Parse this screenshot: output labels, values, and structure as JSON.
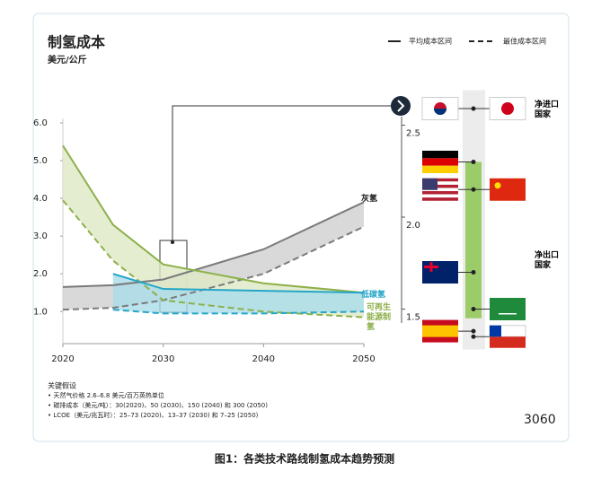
{
  "chart_data": [
    {
      "type": "band-line",
      "title": "制氢成本",
      "subtitle": "美元/公斤",
      "legend": {
        "solid": "平均成本区间",
        "dashed": "最佳成本区间"
      },
      "x": [
        2020,
        2025,
        2030,
        2040,
        2050
      ],
      "xlim": [
        2020,
        2050
      ],
      "xticks": [
        2020,
        2030,
        2040,
        2050
      ],
      "ylim": [
        0.15,
        6.0
      ],
      "yticks": [
        {
          "value": 1,
          "label": "1.0"
        },
        {
          "value": 2,
          "label": "2.0"
        },
        {
          "value": 3,
          "label": "3.0"
        },
        {
          "value": 4,
          "label": "4.0"
        },
        {
          "value": 5,
          "label": "5.0"
        },
        {
          "value": 6,
          "label": "6.0"
        }
      ],
      "bands": [
        {
          "name": "灰氢",
          "color": "#7a7a7a",
          "fill": "#cfcfcf",
          "label_color": "#222",
          "upper": [
            1.65,
            1.7,
            1.85,
            2.65,
            3.9
          ],
          "lower": [
            1.05,
            1.1,
            1.3,
            2.0,
            3.25
          ]
        },
        {
          "name": "可再生能源制氢",
          "color": "#8db04a",
          "fill": "#dfe9c6",
          "label_color": "#8db04a",
          "upper": [
            5.4,
            3.3,
            2.25,
            1.75,
            1.5
          ],
          "lower": [
            3.95,
            2.35,
            1.3,
            1.0,
            0.85
          ]
        },
        {
          "name": "低碳氢",
          "color": "#25a6c8",
          "fill": "#a9dcea",
          "label_color": "#25a6c8",
          "upper": [
            null,
            2.0,
            1.6,
            1.55,
            1.5
          ],
          "lower": [
            null,
            1.05,
            0.95,
            0.95,
            1.0
          ]
        }
      ]
    },
    {
      "type": "dot",
      "ylim": [
        1.28,
        2.69
      ],
      "yticks": [
        {
          "value": 1.5,
          "label": "1.5"
        },
        {
          "value": 2,
          "label": "2.0"
        },
        {
          "value": 2.5,
          "label": "2.5"
        }
      ],
      "range": [
        1.45,
        2.3
      ],
      "range_color": "#9ccc6a",
      "values": [
        2.59,
        2.3,
        2.15,
        1.7,
        1.5,
        1.38,
        1.35
      ],
      "groups": [
        "净进口国家",
        "净出口国家"
      ]
    }
  ],
  "notes": {
    "title": "关键假设",
    "items": [
      "• 天然气价格 2.6–6.8 美元/百万英热单位",
      "• 碳排成本（美元/吨）：30(2020)、50 (2030)、150 (2040) 和 300 (2050)",
      "• LCOE（美元/兆瓦时）：25–73 (2020)、13–37 (2030) 和 7–25 (2050)"
    ]
  },
  "watermark": "3060",
  "caption": "图1：各类技术路线制氢成本趋势预测"
}
